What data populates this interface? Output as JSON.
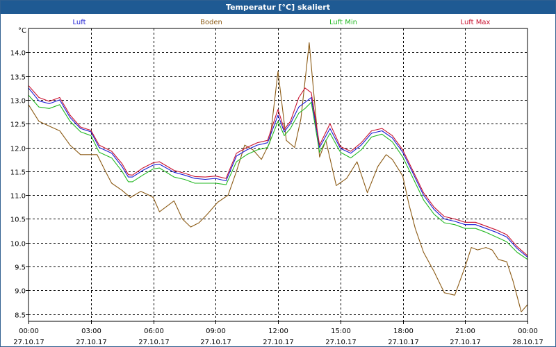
{
  "window": {
    "title": "Temperatur [°C] skaliert"
  },
  "chart_data": {
    "type": "line",
    "title": "Temperatur [°C] skaliert",
    "ylabel": "°C",
    "xlabel": "",
    "ylim": [
      8.35,
      14.5
    ],
    "xlim": [
      0,
      24
    ],
    "grid": true,
    "legend_position": "top",
    "y_ticks": [
      "8.5",
      "9.0",
      "9.5",
      "10.0",
      "10.5",
      "11.0",
      "11.5",
      "12.0",
      "12.5",
      "13.0",
      "13.5",
      "14.0"
    ],
    "y_tick_values": [
      8.5,
      9.0,
      9.5,
      10.0,
      10.5,
      11.0,
      11.5,
      12.0,
      12.5,
      13.0,
      13.5,
      14.0
    ],
    "x_ticks": [
      {
        "time": "00:00",
        "date": "27.10.17",
        "hour": 0
      },
      {
        "time": "03:00",
        "date": "27.10.17",
        "hour": 3
      },
      {
        "time": "06:00",
        "date": "27.10.17",
        "hour": 6
      },
      {
        "time": "09:00",
        "date": "27.10.17",
        "hour": 9
      },
      {
        "time": "12:00",
        "date": "27.10.17",
        "hour": 12
      },
      {
        "time": "15:00",
        "date": "27.10.17",
        "hour": 15
      },
      {
        "time": "18:00",
        "date": "27.10.17",
        "hour": 18
      },
      {
        "time": "21:00",
        "date": "27.10.17",
        "hour": 21
      },
      {
        "time": "00:00",
        "date": "28.10.17",
        "hour": 24
      }
    ],
    "series": [
      {
        "name": "Luft",
        "color": "#1a1ad2",
        "points": [
          [
            0,
            13.25
          ],
          [
            0.5,
            12.98
          ],
          [
            1,
            12.92
          ],
          [
            1.5,
            13.0
          ],
          [
            2,
            12.63
          ],
          [
            2.5,
            12.4
          ],
          [
            3,
            12.33
          ],
          [
            3.4,
            12.0
          ],
          [
            4,
            11.88
          ],
          [
            4.5,
            11.6
          ],
          [
            4.8,
            11.38
          ],
          [
            5,
            11.38
          ],
          [
            5.5,
            11.52
          ],
          [
            6,
            11.63
          ],
          [
            6.3,
            11.65
          ],
          [
            7,
            11.48
          ],
          [
            7.5,
            11.42
          ],
          [
            8,
            11.35
          ],
          [
            8.5,
            11.33
          ],
          [
            9,
            11.35
          ],
          [
            9.5,
            11.3
          ],
          [
            10,
            11.82
          ],
          [
            10.5,
            11.95
          ],
          [
            11,
            12.05
          ],
          [
            11.5,
            12.1
          ],
          [
            12,
            12.68
          ],
          [
            12.3,
            12.33
          ],
          [
            12.6,
            12.5
          ],
          [
            13,
            12.85
          ],
          [
            13.3,
            12.95
          ],
          [
            13.6,
            13.05
          ],
          [
            14,
            12.0
          ],
          [
            14.5,
            12.4
          ],
          [
            15,
            11.98
          ],
          [
            15.5,
            11.88
          ],
          [
            16,
            12.05
          ],
          [
            16.5,
            12.3
          ],
          [
            17,
            12.35
          ],
          [
            17.5,
            12.2
          ],
          [
            18,
            11.9
          ],
          [
            18.5,
            11.45
          ],
          [
            19,
            11.0
          ],
          [
            19.5,
            10.7
          ],
          [
            20,
            10.5
          ],
          [
            20.5,
            10.45
          ],
          [
            21,
            10.38
          ],
          [
            21.5,
            10.38
          ],
          [
            22,
            10.3
          ],
          [
            22.5,
            10.22
          ],
          [
            23,
            10.12
          ],
          [
            23.5,
            9.88
          ],
          [
            24,
            9.7
          ]
        ]
      },
      {
        "name": "Boden",
        "color": "#8b5a14",
        "points": [
          [
            0,
            12.9
          ],
          [
            0.5,
            12.55
          ],
          [
            1,
            12.45
          ],
          [
            1.5,
            12.35
          ],
          [
            2,
            12.05
          ],
          [
            2.5,
            11.85
          ],
          [
            3,
            11.85
          ],
          [
            3.3,
            11.85
          ],
          [
            3.7,
            11.5
          ],
          [
            4,
            11.25
          ],
          [
            4.5,
            11.1
          ],
          [
            4.9,
            10.95
          ],
          [
            5.4,
            11.08
          ],
          [
            5.8,
            11.0
          ],
          [
            6,
            10.95
          ],
          [
            6.3,
            10.65
          ],
          [
            7,
            10.88
          ],
          [
            7.4,
            10.5
          ],
          [
            7.8,
            10.33
          ],
          [
            8.2,
            10.42
          ],
          [
            8.6,
            10.6
          ],
          [
            9.1,
            10.85
          ],
          [
            9.6,
            11.0
          ],
          [
            10,
            11.5
          ],
          [
            10.4,
            12.05
          ],
          [
            10.8,
            11.95
          ],
          [
            11.2,
            11.75
          ],
          [
            11.6,
            12.1
          ],
          [
            12,
            13.6
          ],
          [
            12.4,
            12.15
          ],
          [
            12.8,
            12.0
          ],
          [
            13.1,
            12.6
          ],
          [
            13.5,
            14.2
          ],
          [
            14,
            11.8
          ],
          [
            14.3,
            12.15
          ],
          [
            14.8,
            11.2
          ],
          [
            15.3,
            11.35
          ],
          [
            15.8,
            11.7
          ],
          [
            16.3,
            11.05
          ],
          [
            16.8,
            11.6
          ],
          [
            17.2,
            11.85
          ],
          [
            17.5,
            11.75
          ],
          [
            18,
            11.4
          ],
          [
            18.3,
            10.8
          ],
          [
            18.6,
            10.3
          ],
          [
            19,
            9.8
          ],
          [
            19.5,
            9.4
          ],
          [
            20,
            8.95
          ],
          [
            20.5,
            8.9
          ],
          [
            21,
            9.5
          ],
          [
            21.3,
            9.9
          ],
          [
            21.6,
            9.85
          ],
          [
            22,
            9.9
          ],
          [
            22.3,
            9.85
          ],
          [
            22.6,
            9.65
          ],
          [
            23,
            9.6
          ],
          [
            23.3,
            9.2
          ],
          [
            23.7,
            8.55
          ],
          [
            24,
            8.7
          ]
        ]
      },
      {
        "name": "Luft Min",
        "color": "#22b822",
        "points": [
          [
            0,
            13.1
          ],
          [
            0.5,
            12.85
          ],
          [
            1,
            12.82
          ],
          [
            1.5,
            12.9
          ],
          [
            2,
            12.55
          ],
          [
            2.5,
            12.33
          ],
          [
            3,
            12.25
          ],
          [
            3.4,
            11.9
          ],
          [
            4,
            11.78
          ],
          [
            4.5,
            11.5
          ],
          [
            4.8,
            11.28
          ],
          [
            5,
            11.28
          ],
          [
            5.5,
            11.42
          ],
          [
            6,
            11.55
          ],
          [
            6.3,
            11.57
          ],
          [
            7,
            11.38
          ],
          [
            7.5,
            11.33
          ],
          [
            8,
            11.25
          ],
          [
            8.5,
            11.25
          ],
          [
            9,
            11.25
          ],
          [
            9.5,
            11.22
          ],
          [
            10,
            11.7
          ],
          [
            10.5,
            11.85
          ],
          [
            11,
            11.95
          ],
          [
            11.5,
            12.0
          ],
          [
            12,
            12.55
          ],
          [
            12.3,
            12.25
          ],
          [
            12.6,
            12.4
          ],
          [
            13,
            12.72
          ],
          [
            13.3,
            12.82
          ],
          [
            13.6,
            12.95
          ],
          [
            14,
            11.9
          ],
          [
            14.5,
            12.3
          ],
          [
            15,
            11.9
          ],
          [
            15.5,
            11.78
          ],
          [
            16,
            11.95
          ],
          [
            16.5,
            12.22
          ],
          [
            17,
            12.28
          ],
          [
            17.5,
            12.12
          ],
          [
            18,
            11.8
          ],
          [
            18.5,
            11.35
          ],
          [
            19,
            10.9
          ],
          [
            19.5,
            10.6
          ],
          [
            20,
            10.42
          ],
          [
            20.5,
            10.38
          ],
          [
            21,
            10.3
          ],
          [
            21.5,
            10.3
          ],
          [
            22,
            10.22
          ],
          [
            22.5,
            10.12
          ],
          [
            23,
            10.02
          ],
          [
            23.5,
            9.8
          ],
          [
            24,
            9.65
          ]
        ]
      },
      {
        "name": "Luft Max",
        "color": "#c8102e",
        "points": [
          [
            0,
            13.3
          ],
          [
            0.5,
            13.05
          ],
          [
            1,
            12.97
          ],
          [
            1.5,
            13.05
          ],
          [
            2,
            12.68
          ],
          [
            2.5,
            12.43
          ],
          [
            3,
            12.36
          ],
          [
            3.4,
            12.05
          ],
          [
            4,
            11.92
          ],
          [
            4.5,
            11.66
          ],
          [
            4.8,
            11.43
          ],
          [
            5,
            11.42
          ],
          [
            5.5,
            11.57
          ],
          [
            6,
            11.68
          ],
          [
            6.3,
            11.7
          ],
          [
            7,
            11.52
          ],
          [
            7.5,
            11.46
          ],
          [
            8,
            11.39
          ],
          [
            8.5,
            11.38
          ],
          [
            9,
            11.4
          ],
          [
            9.5,
            11.35
          ],
          [
            10,
            11.88
          ],
          [
            10.5,
            12.0
          ],
          [
            11,
            12.1
          ],
          [
            11.5,
            12.15
          ],
          [
            12,
            12.8
          ],
          [
            12.3,
            12.38
          ],
          [
            12.6,
            12.55
          ],
          [
            13,
            13.05
          ],
          [
            13.3,
            13.25
          ],
          [
            13.6,
            13.15
          ],
          [
            14,
            12.05
          ],
          [
            14.5,
            12.5
          ],
          [
            15,
            12.02
          ],
          [
            15.5,
            11.92
          ],
          [
            16,
            12.1
          ],
          [
            16.5,
            12.35
          ],
          [
            17,
            12.4
          ],
          [
            17.5,
            12.25
          ],
          [
            18,
            11.95
          ],
          [
            18.5,
            11.5
          ],
          [
            19,
            11.05
          ],
          [
            19.5,
            10.75
          ],
          [
            20,
            10.55
          ],
          [
            20.5,
            10.5
          ],
          [
            21,
            10.43
          ],
          [
            21.5,
            10.43
          ],
          [
            22,
            10.35
          ],
          [
            22.5,
            10.27
          ],
          [
            23,
            10.17
          ],
          [
            23.5,
            9.92
          ],
          [
            24,
            9.73
          ]
        ]
      }
    ]
  }
}
